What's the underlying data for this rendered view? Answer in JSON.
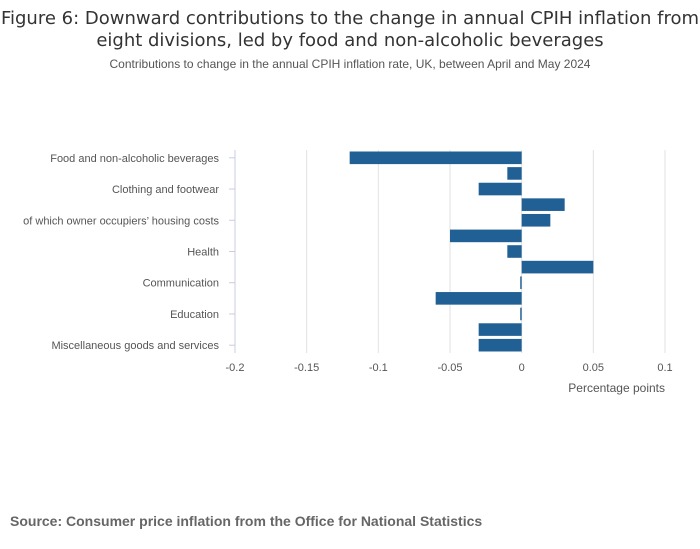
{
  "chart_data": {
    "type": "bar",
    "orientation": "horizontal",
    "title": "Figure 6: Downward contributions to the change in annual CPIH inflation from eight divisions, led by food and non-alcoholic beverages",
    "subtitle": "Contributions to change in the annual CPIH inflation rate, UK, between April and May 2024",
    "categories": [
      "Food and non-alcoholic beverages",
      "",
      "Clothing and footwear",
      "",
      "of which owner occupiers’ housing costs",
      "",
      "Health",
      "",
      "Communication",
      "",
      "Education",
      "",
      "Miscellaneous goods and services"
    ],
    "values": [
      -0.12,
      -0.01,
      -0.03,
      0.03,
      0.02,
      -0.05,
      -0.01,
      0.05,
      -0.001,
      -0.06,
      -0.001,
      -0.03,
      -0.03
    ],
    "xlabel": "Percentage points",
    "xlim": [
      -0.2,
      0.1
    ],
    "xticks": [
      -0.2,
      -0.15,
      -0.1,
      -0.05,
      0,
      0.05,
      0.1
    ],
    "xtick_labels": [
      "-0.2",
      "-0.15",
      "-0.1",
      "-0.05",
      "0",
      "0.05",
      "0.1"
    ],
    "grid": true,
    "bar_color": "#206095"
  },
  "source": "Source: Consumer price inflation from the Office for National Statistics"
}
